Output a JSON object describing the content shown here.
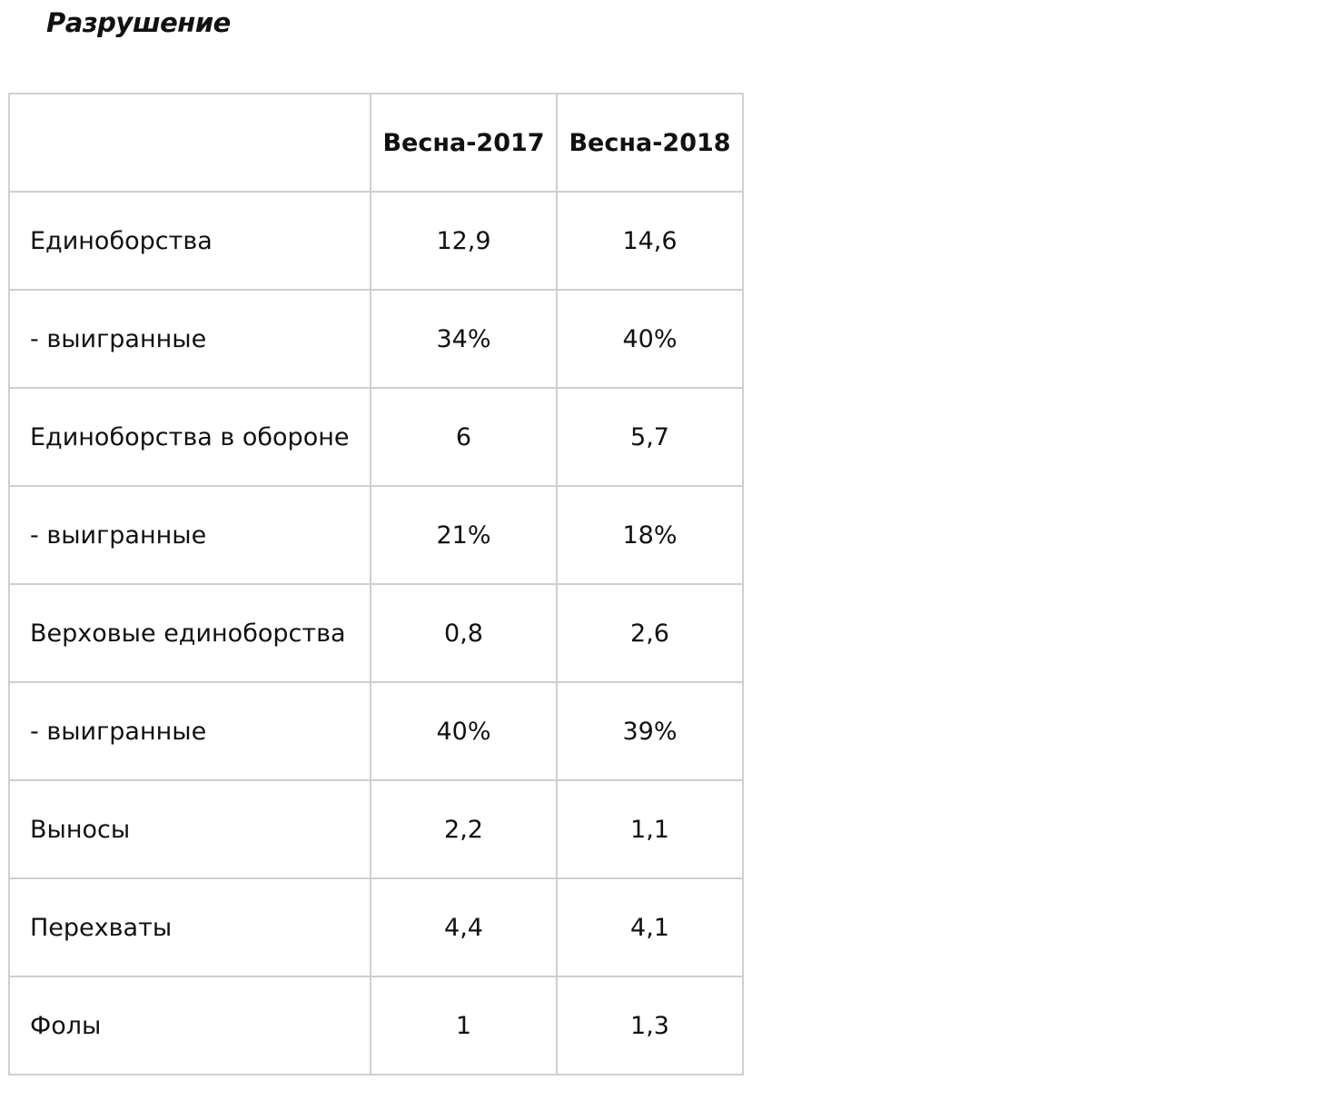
{
  "title": "Разрушение",
  "table": {
    "columns": [
      "",
      "Весна-2017",
      "Весна-2018"
    ],
    "rows": [
      {
        "label": "Единоборства",
        "v2017": "12,9",
        "v2018": "14,6"
      },
      {
        "label": "- выигранные",
        "v2017": "34%",
        "v2018": "40%"
      },
      {
        "label": "Единоборства в обороне",
        "v2017": "6",
        "v2018": "5,7"
      },
      {
        "label": "- выигранные",
        "v2017": "21%",
        "v2018": "18%"
      },
      {
        "label": "Верховые единоборства",
        "v2017": "0,8",
        "v2018": "2,6"
      },
      {
        "label": "- выигранные",
        "v2017": "40%",
        "v2018": "39%"
      },
      {
        "label": "Выносы",
        "v2017": "2,2",
        "v2018": "1,1"
      },
      {
        "label": "Перехваты",
        "v2017": "4,4",
        "v2018": "4,1"
      },
      {
        "label": "Фолы",
        "v2017": "1",
        "v2018": "1,3"
      }
    ]
  }
}
